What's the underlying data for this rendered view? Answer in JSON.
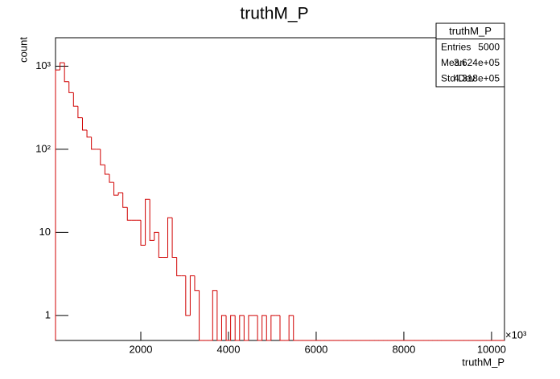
{
  "chart_data": {
    "type": "histogram",
    "title": "truthM_P",
    "x_label": "truthM_P",
    "y_label": "count",
    "x_multiplier": "×10³",
    "color": "#d00000",
    "log_y": true,
    "bins": [
      55,
      157.4,
      259.8,
      362.2,
      464.6,
      567,
      669.4,
      771.8,
      874.2,
      976.6,
      1079,
      1181.4,
      1283.8,
      1386.2,
      1488.6,
      1591,
      1693.4,
      1795.8,
      1898.2,
      2000.6,
      2103,
      2205.4,
      2307.8,
      2410.2,
      2512.6,
      2615,
      2717.4,
      2819.8,
      2922.2,
      3024.6,
      3127,
      3229.4,
      3331.8,
      3434.2,
      3536.6,
      3639,
      3741.4,
      3843.8,
      3946.2,
      4048.6,
      4151,
      4253.4,
      4355.8,
      4458.2,
      4560.6,
      4663,
      4765.4,
      4867.8,
      4970.2,
      5072.6,
      5175,
      5277.4,
      5379.8,
      5482.2,
      5584.6,
      5687,
      5789.4,
      5891.8,
      5994.2,
      6096.6,
      6199,
      6301.4,
      6403.8,
      6506.2,
      6608.6,
      6711,
      6813.4,
      6915.8,
      7018.2,
      7120.6,
      7223,
      7325.4,
      7427.8,
      7530.2,
      7632.6,
      7735,
      7837.4,
      7939.8,
      8042.2,
      8144.6,
      8247,
      8349.4,
      8451.8,
      8554.2,
      8656.6,
      8759,
      8861.4,
      8963.8,
      9066.2,
      9168.6,
      9271,
      9373.4,
      9475.8,
      9578.2,
      9680.6,
      9783,
      9885.4,
      9987.8,
      10090.2,
      10192.6,
      10295
    ],
    "counts": [
      900,
      1100,
      650,
      480,
      330,
      240,
      170,
      140,
      100,
      100,
      65,
      50,
      40,
      28,
      30,
      20,
      14,
      14,
      14,
      7,
      25,
      8,
      10,
      5,
      5,
      15,
      5,
      3,
      3,
      1,
      3,
      2,
      0,
      0,
      0,
      2,
      0,
      1,
      0,
      1,
      0,
      1,
      0,
      1,
      1,
      0,
      1,
      0,
      1,
      1,
      0,
      0,
      1,
      0,
      0,
      0,
      0,
      0,
      0,
      0,
      0,
      0,
      0,
      0,
      0,
      0,
      0,
      0,
      0,
      0,
      0,
      0,
      0,
      0,
      0,
      0,
      0,
      0,
      0,
      0,
      0,
      0,
      0,
      0,
      0,
      0,
      0,
      0,
      0,
      0,
      0,
      0,
      0,
      0,
      0,
      0,
      0,
      0,
      0,
      0
    ],
    "xlim": [
      55,
      10295
    ],
    "ylim": [
      0.5,
      2200
    ],
    "xticks": [
      2000,
      4000,
      6000,
      8000,
      10000
    ],
    "yticks": [
      1,
      10,
      {
        "value": 100,
        "label": "10²"
      },
      {
        "value": 1000,
        "label": "10³"
      }
    ],
    "stats": {
      "title": "truthM_P",
      "rows": [
        [
          "Entries",
          "5000"
        ],
        [
          "Mean",
          "3.624e+05"
        ],
        [
          "Std Dev",
          "4.318e+05"
        ]
      ]
    }
  }
}
